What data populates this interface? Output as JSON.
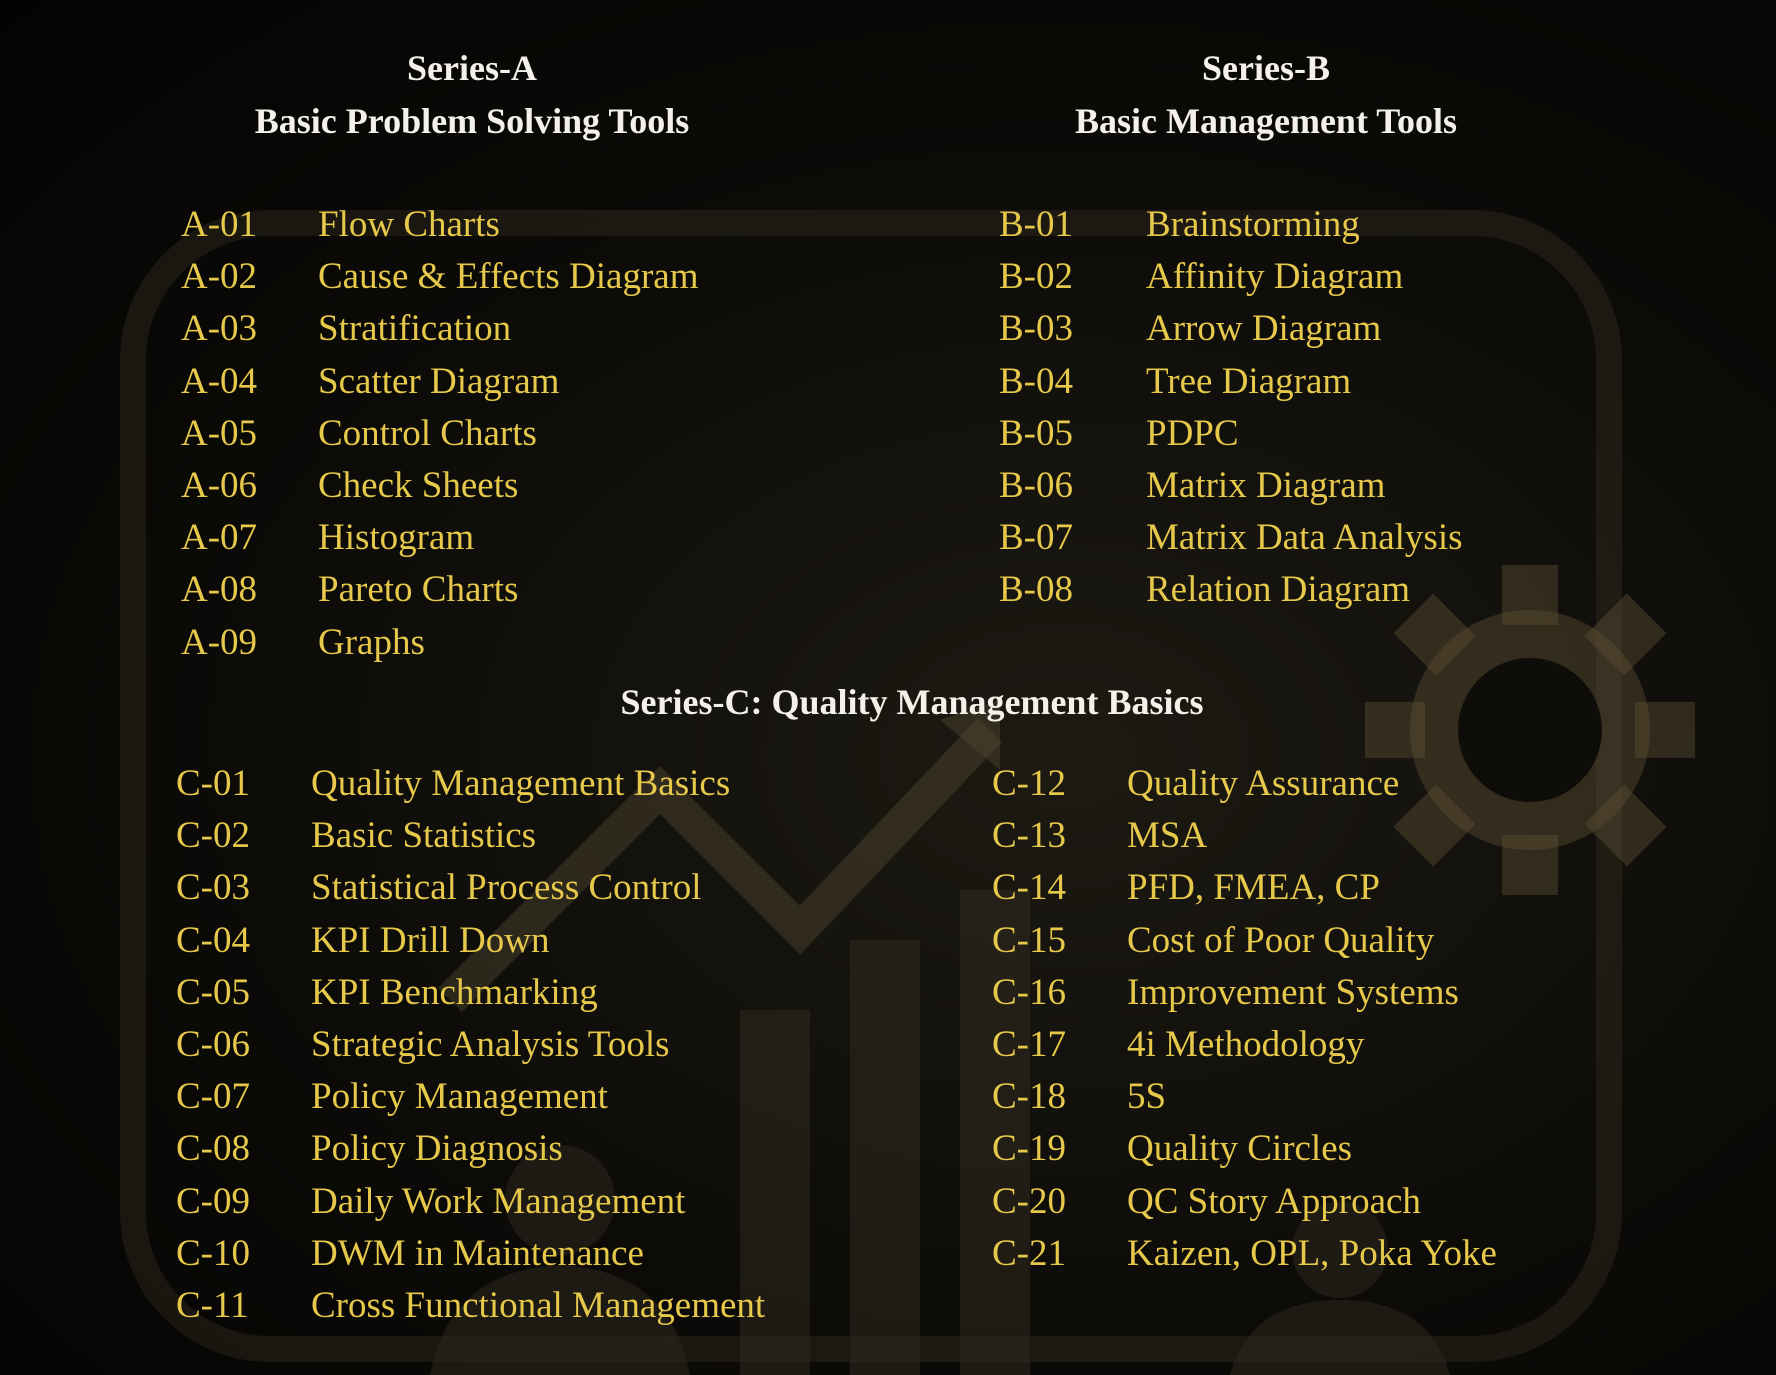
{
  "series_a": {
    "title": "Series-A",
    "subtitle": "Basic Problem  Solving Tools",
    "items": [
      {
        "code": "A-01",
        "name": "Flow Charts"
      },
      {
        "code": "A-02",
        "name": "Cause & Effects Diagram"
      },
      {
        "code": "A-03",
        "name": "Stratification"
      },
      {
        "code": "A-04",
        "name": "Scatter Diagram"
      },
      {
        "code": "A-05",
        "name": "Control Charts"
      },
      {
        "code": "A-06",
        "name": "Check Sheets"
      },
      {
        "code": "A-07",
        "name": "Histogram"
      },
      {
        "code": "A-08",
        "name": "Pareto Charts"
      },
      {
        "code": "A-09",
        "name": "Graphs"
      }
    ]
  },
  "series_b": {
    "title": "Series-B",
    "subtitle": "Basic Management Tools",
    "items": [
      {
        "code": "B-01",
        "name": "Brainstorming"
      },
      {
        "code": "B-02",
        "name": "Affinity Diagram"
      },
      {
        "code": "B-03",
        "name": "Arrow Diagram"
      },
      {
        "code": "B-04",
        "name": "Tree Diagram"
      },
      {
        "code": "B-05",
        "name": "PDPC"
      },
      {
        "code": "B-06",
        "name": "Matrix Diagram"
      },
      {
        "code": "B-07",
        "name": "Matrix Data Analysis"
      },
      {
        "code": "B-08",
        "name": "Relation Diagram"
      }
    ]
  },
  "series_c": {
    "title": "Series-C: Quality Management Basics",
    "items": [
      {
        "code": "C-01",
        "name": "Quality Management Basics"
      },
      {
        "code": "C-02",
        "name": "Basic Statistics"
      },
      {
        "code": "C-03",
        "name": "Statistical Process Control"
      },
      {
        "code": "C-04",
        "name": "KPI Drill Down"
      },
      {
        "code": "C-05",
        "name": "KPI Benchmarking"
      },
      {
        "code": "C-06",
        "name": "Strategic Analysis Tools"
      },
      {
        "code": "C-07",
        "name": "Policy Management"
      },
      {
        "code": "C-08",
        "name": "Policy Diagnosis"
      },
      {
        "code": "C-09",
        "name": "Daily Work Management"
      },
      {
        "code": "C-10",
        "name": "DWM in Maintenance"
      },
      {
        "code": "C-11",
        "name": "Cross Functional Management"
      },
      {
        "code": "C-12",
        "name": "Quality Assurance"
      },
      {
        "code": "C-13",
        "name": "MSA"
      },
      {
        "code": "C-14",
        "name": "PFD, FMEA, CP"
      },
      {
        "code": "C-15",
        "name": "Cost of Poor Quality"
      },
      {
        "code": "C-16",
        "name": "Improvement Systems"
      },
      {
        "code": "C-17",
        "name": "4i Methodology"
      },
      {
        "code": "C-18",
        "name": "5S"
      },
      {
        "code": "C-19",
        "name": "Quality Circles"
      },
      {
        "code": "C-20",
        "name": "QC Story Approach"
      },
      {
        "code": "C-21",
        "name": "Kaizen, OPL, Poka Yoke"
      }
    ]
  },
  "colors": {
    "heading": "#f4f1ea",
    "item": "#e6c84a",
    "background": "#0c0b08"
  },
  "decorations": [
    "gear-icon",
    "trend-arrow-icon",
    "bar-chart-icon",
    "people-silhouette"
  ]
}
